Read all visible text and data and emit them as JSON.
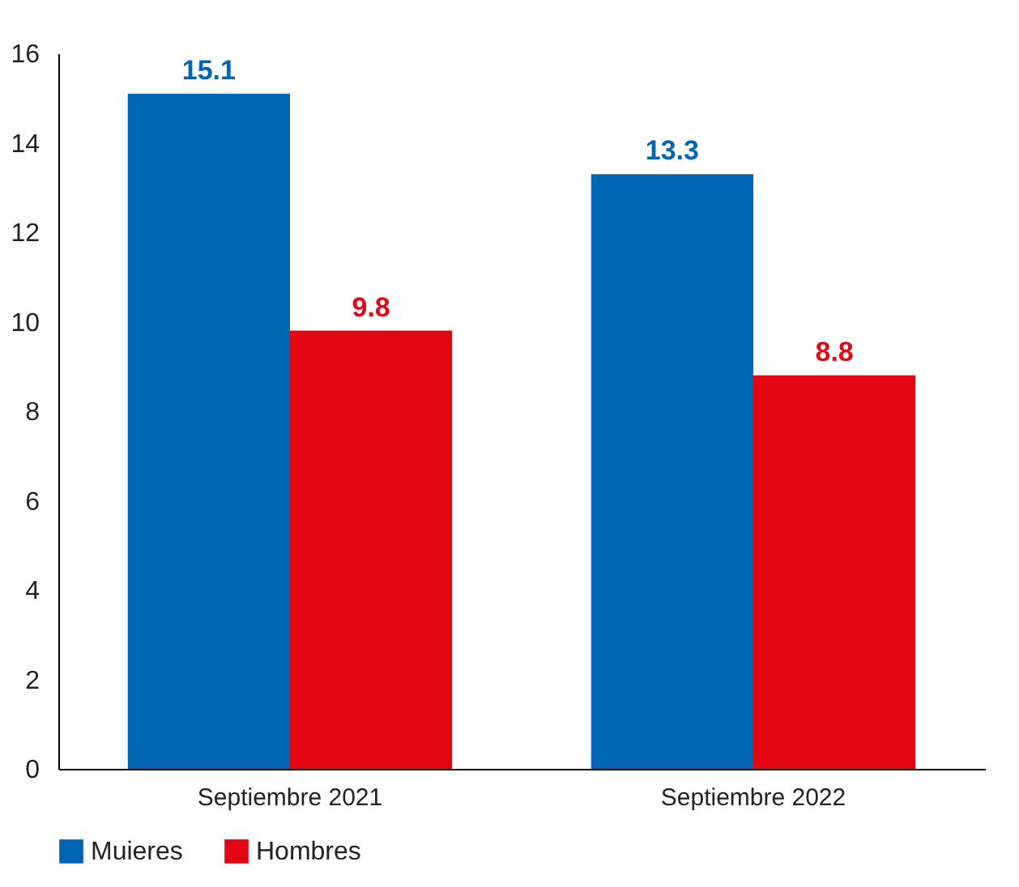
{
  "chart_data": {
    "type": "bar",
    "categories": [
      "Septiembre 2021",
      "Septiembre 2022"
    ],
    "series": [
      {
        "name": "Muieres",
        "color": "#0066b3",
        "values": [
          15.1,
          13.3
        ]
      },
      {
        "name": "Hombres",
        "color": "#e30613",
        "values": [
          9.8,
          8.8
        ]
      }
    ],
    "ylim": [
      0,
      16
    ],
    "yticks": [
      0,
      2,
      4,
      6,
      8,
      10,
      12,
      14,
      16
    ],
    "grid": false,
    "legend": "bottom",
    "data_labels": true
  }
}
